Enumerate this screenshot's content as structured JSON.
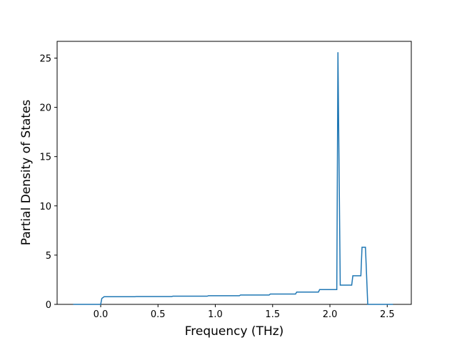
{
  "chart_data": {
    "type": "line",
    "xlabel": "Frequency (THz)",
    "ylabel": "Partial Density of States",
    "x": [
      -0.24,
      0.0,
      0.01,
      0.03,
      0.3,
      0.31,
      0.62,
      0.63,
      0.93,
      0.94,
      1.21,
      1.22,
      1.47,
      1.48,
      1.7,
      1.71,
      1.9,
      1.91,
      2.06,
      2.07,
      2.09,
      2.19,
      2.2,
      2.27,
      2.28,
      2.31,
      2.33,
      2.55
    ],
    "series": [
      {
        "color": "#1f77b4",
        "values": [
          0,
          0,
          0.6,
          0.78,
          0.78,
          0.8,
          0.8,
          0.83,
          0.83,
          0.88,
          0.88,
          0.95,
          0.95,
          1.05,
          1.05,
          1.25,
          1.25,
          1.5,
          1.5,
          25.6,
          1.95,
          1.95,
          2.9,
          2.9,
          5.8,
          5.8,
          0,
          0
        ]
      }
    ],
    "xlim": [
      -0.38,
      2.71
    ],
    "ylim": [
      0,
      26.7
    ],
    "xticks": [
      {
        "value": 0,
        "label": "0.0"
      },
      0.5,
      {
        "value": 1,
        "label": "1.0"
      },
      1.5,
      {
        "value": 2,
        "label": "2.0"
      },
      2.5
    ],
    "yticks": [
      0,
      5,
      10,
      15,
      20,
      25
    ]
  }
}
